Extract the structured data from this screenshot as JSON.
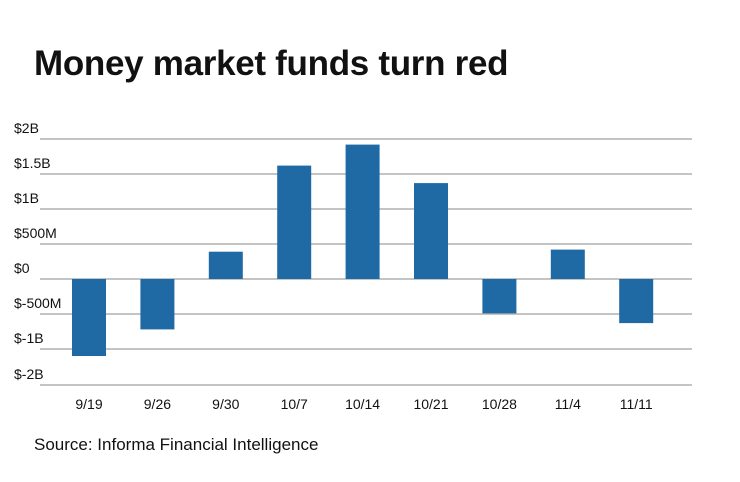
{
  "title": "Money market funds turn red",
  "source": "Source: Informa Financial Intelligence",
  "colors": {
    "bar": "#1f6aa5",
    "grid": "#8a8a8a",
    "text": "#111111"
  },
  "chart_data": {
    "type": "bar",
    "title": "Money market funds turn red",
    "xlabel": "",
    "ylabel": "",
    "categories": [
      "9/19",
      "9/26",
      "9/30",
      "10/7",
      "10/14",
      "10/21",
      "10/28",
      "11/4",
      "11/11"
    ],
    "values": [
      -1.1,
      -0.72,
      0.39,
      1.62,
      1.92,
      1.37,
      -0.49,
      0.42,
      -0.63
    ],
    "units": "billions of dollars",
    "ylim": [
      -2,
      2
    ],
    "ytick_values": [
      2,
      1.5,
      1,
      0.5,
      0,
      -0.5,
      -1,
      -2
    ],
    "ytick_labels": [
      "$2B",
      "$1.5B",
      "$1B",
      "$500M",
      "$0",
      "$-500M",
      "$-1B",
      "$-2B"
    ],
    "grid": true,
    "legend": "none"
  }
}
